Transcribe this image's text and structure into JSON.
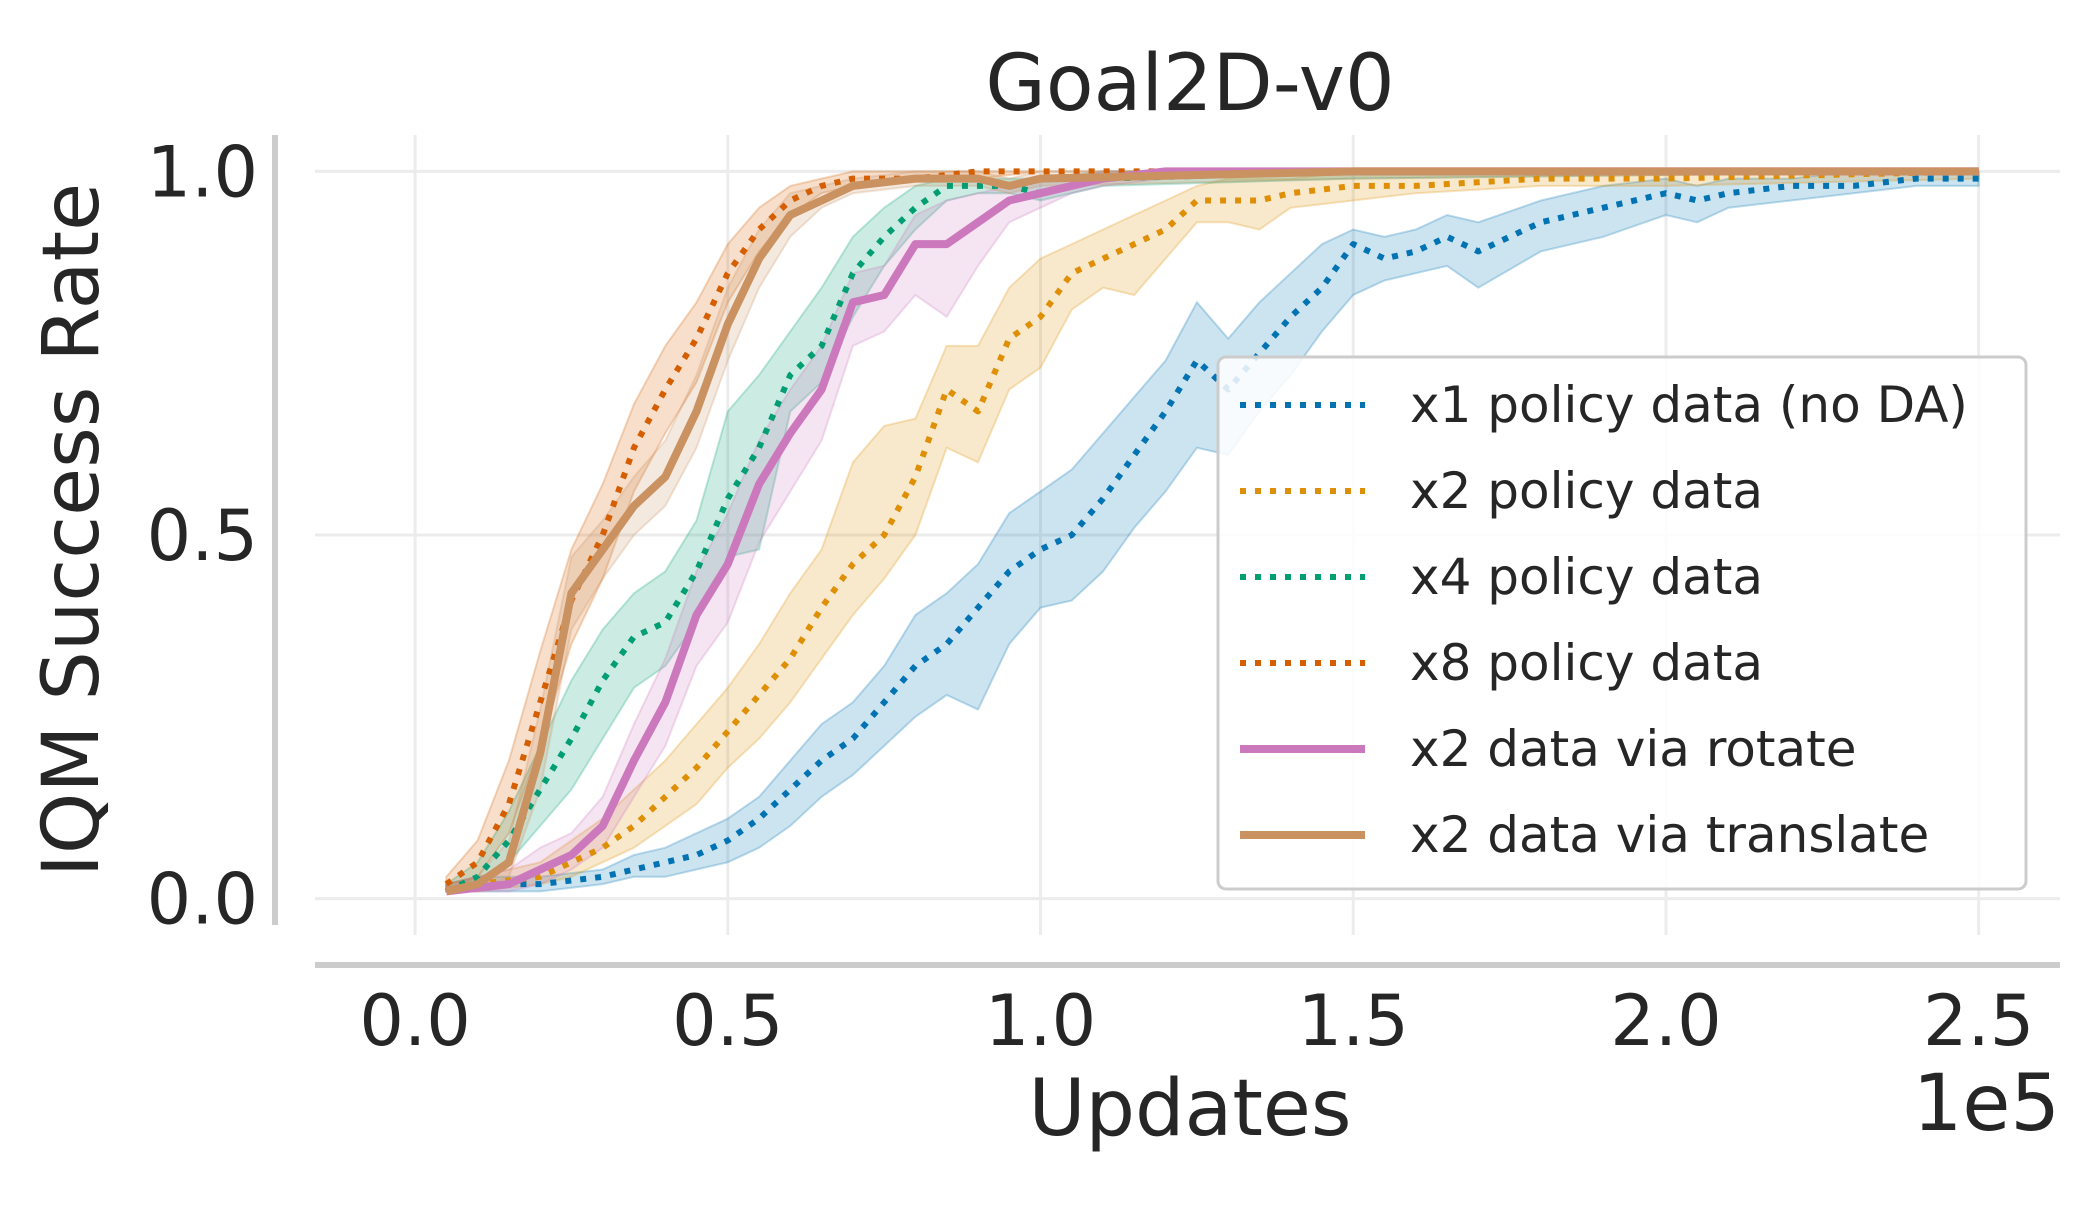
{
  "chart_data": {
    "type": "line",
    "title": "Goal2D-v0",
    "xlabel": "Updates",
    "ylabel": "IQM Success Rate",
    "x_scale_label": "1e5",
    "xlim": [
      -0.16,
      2.63
    ],
    "ylim": [
      -0.05,
      1.05
    ],
    "x_ticks": [
      0.0,
      0.5,
      1.0,
      1.5,
      2.0,
      2.5
    ],
    "x_tick_labels": [
      "0.0",
      "0.5",
      "1.0",
      "1.5",
      "2.0",
      "2.5"
    ],
    "y_ticks": [
      0.0,
      0.5,
      1.0
    ],
    "y_tick_labels": [
      "0.0",
      "0.5",
      "1.0"
    ],
    "grid": true,
    "legend_position": "center-right",
    "series": [
      {
        "name": "x1 policy data (no DA)",
        "style": "dotted",
        "color": "#0173b2",
        "x": [
          0.05,
          0.1,
          0.2,
          0.3,
          0.35,
          0.4,
          0.45,
          0.5,
          0.55,
          0.6,
          0.65,
          0.7,
          0.75,
          0.8,
          0.85,
          0.9,
          0.95,
          1.0,
          1.05,
          1.1,
          1.15,
          1.2,
          1.25,
          1.3,
          1.35,
          1.4,
          1.45,
          1.5,
          1.55,
          1.6,
          1.65,
          1.7,
          1.8,
          1.9,
          2.0,
          2.05,
          2.1,
          2.2,
          2.3,
          2.4,
          2.5
        ],
        "values": [
          0.01,
          0.02,
          0.02,
          0.03,
          0.04,
          0.05,
          0.06,
          0.08,
          0.11,
          0.15,
          0.19,
          0.22,
          0.27,
          0.32,
          0.35,
          0.4,
          0.45,
          0.48,
          0.5,
          0.55,
          0.61,
          0.67,
          0.74,
          0.7,
          0.75,
          0.8,
          0.84,
          0.9,
          0.88,
          0.89,
          0.91,
          0.89,
          0.93,
          0.95,
          0.97,
          0.96,
          0.97,
          0.98,
          0.98,
          0.99,
          0.99
        ],
        "lower": [
          0.01,
          0.01,
          0.01,
          0.02,
          0.03,
          0.03,
          0.04,
          0.05,
          0.07,
          0.1,
          0.14,
          0.17,
          0.21,
          0.25,
          0.28,
          0.26,
          0.35,
          0.4,
          0.41,
          0.45,
          0.51,
          0.56,
          0.62,
          0.61,
          0.67,
          0.72,
          0.78,
          0.83,
          0.85,
          0.86,
          0.87,
          0.84,
          0.89,
          0.91,
          0.94,
          0.93,
          0.95,
          0.96,
          0.97,
          0.98,
          0.98
        ],
        "upper": [
          0.02,
          0.03,
          0.03,
          0.04,
          0.06,
          0.07,
          0.09,
          0.11,
          0.14,
          0.19,
          0.24,
          0.27,
          0.32,
          0.39,
          0.42,
          0.46,
          0.53,
          0.56,
          0.59,
          0.64,
          0.69,
          0.74,
          0.82,
          0.77,
          0.82,
          0.86,
          0.9,
          0.92,
          0.91,
          0.92,
          0.94,
          0.93,
          0.96,
          0.98,
          0.99,
          0.98,
          0.99,
          0.99,
          1.0,
          1.0,
          1.0
        ]
      },
      {
        "name": "x2 policy data",
        "style": "dotted",
        "color": "#de8f05",
        "x": [
          0.05,
          0.1,
          0.2,
          0.25,
          0.3,
          0.35,
          0.4,
          0.45,
          0.5,
          0.55,
          0.6,
          0.65,
          0.7,
          0.75,
          0.8,
          0.85,
          0.9,
          0.95,
          1.0,
          1.05,
          1.1,
          1.15,
          1.2,
          1.25,
          1.3,
          1.35,
          1.4,
          1.5,
          1.6,
          1.8,
          2.0,
          2.5
        ],
        "values": [
          0.01,
          0.02,
          0.03,
          0.05,
          0.07,
          0.1,
          0.14,
          0.18,
          0.23,
          0.28,
          0.33,
          0.4,
          0.46,
          0.5,
          0.58,
          0.7,
          0.67,
          0.77,
          0.8,
          0.86,
          0.88,
          0.9,
          0.92,
          0.96,
          0.96,
          0.96,
          0.97,
          0.98,
          0.98,
          0.99,
          0.99,
          1.0
        ],
        "lower": [
          0.01,
          0.01,
          0.02,
          0.03,
          0.05,
          0.07,
          0.1,
          0.13,
          0.18,
          0.22,
          0.27,
          0.33,
          0.39,
          0.44,
          0.5,
          0.62,
          0.6,
          0.7,
          0.73,
          0.81,
          0.84,
          0.83,
          0.88,
          0.93,
          0.93,
          0.92,
          0.95,
          0.96,
          0.97,
          0.98,
          0.98,
          0.99
        ],
        "upper": [
          0.02,
          0.03,
          0.05,
          0.08,
          0.11,
          0.15,
          0.19,
          0.24,
          0.29,
          0.35,
          0.42,
          0.48,
          0.6,
          0.65,
          0.66,
          0.76,
          0.76,
          0.84,
          0.88,
          0.9,
          0.92,
          0.94,
          0.96,
          0.98,
          0.99,
          0.99,
          0.99,
          1.0,
          1.0,
          1.0,
          1.0,
          1.0
        ]
      },
      {
        "name": "x4 policy data",
        "style": "dotted",
        "color": "#029e73",
        "x": [
          0.05,
          0.1,
          0.15,
          0.2,
          0.25,
          0.3,
          0.35,
          0.4,
          0.45,
          0.5,
          0.55,
          0.6,
          0.65,
          0.7,
          0.75,
          0.8,
          0.85,
          0.9,
          0.95,
          1.0,
          1.1,
          1.5,
          2.5
        ],
        "values": [
          0.01,
          0.03,
          0.08,
          0.15,
          0.22,
          0.3,
          0.36,
          0.38,
          0.45,
          0.55,
          0.62,
          0.72,
          0.76,
          0.86,
          0.91,
          0.95,
          0.98,
          0.98,
          0.98,
          0.97,
          0.99,
          1.0,
          1.0
        ],
        "lower": [
          0.01,
          0.02,
          0.05,
          0.1,
          0.15,
          0.22,
          0.29,
          0.32,
          0.38,
          0.47,
          0.48,
          0.67,
          0.71,
          0.8,
          0.87,
          0.92,
          0.96,
          0.97,
          0.97,
          0.96,
          0.98,
          0.99,
          1.0
        ],
        "upper": [
          0.02,
          0.05,
          0.12,
          0.21,
          0.3,
          0.37,
          0.42,
          0.45,
          0.52,
          0.67,
          0.72,
          0.78,
          0.84,
          0.91,
          0.95,
          0.98,
          0.99,
          0.99,
          0.99,
          0.99,
          1.0,
          1.0,
          1.0
        ]
      },
      {
        "name": "x8 policy data",
        "style": "dotted",
        "color": "#d55e00",
        "x": [
          0.05,
          0.1,
          0.15,
          0.2,
          0.25,
          0.3,
          0.35,
          0.4,
          0.45,
          0.5,
          0.55,
          0.6,
          0.65,
          0.7,
          0.8,
          0.9,
          1.0,
          1.5,
          2.5
        ],
        "values": [
          0.02,
          0.05,
          0.13,
          0.27,
          0.41,
          0.5,
          0.62,
          0.7,
          0.77,
          0.86,
          0.92,
          0.96,
          0.98,
          0.99,
          0.99,
          1.0,
          1.0,
          1.0,
          1.0
        ],
        "lower": [
          0.01,
          0.03,
          0.09,
          0.21,
          0.35,
          0.44,
          0.56,
          0.64,
          0.71,
          0.82,
          0.89,
          0.94,
          0.97,
          0.98,
          0.99,
          0.99,
          1.0,
          1.0,
          1.0
        ],
        "upper": [
          0.03,
          0.08,
          0.19,
          0.34,
          0.48,
          0.57,
          0.68,
          0.76,
          0.82,
          0.9,
          0.95,
          0.98,
          0.99,
          1.0,
          1.0,
          1.0,
          1.0,
          1.0,
          1.0
        ]
      },
      {
        "name": "x2 data via rotate",
        "style": "solid",
        "color": "#cc78bc",
        "x": [
          0.05,
          0.15,
          0.2,
          0.25,
          0.3,
          0.35,
          0.4,
          0.45,
          0.5,
          0.55,
          0.6,
          0.65,
          0.7,
          0.75,
          0.8,
          0.85,
          0.9,
          0.95,
          1.0,
          1.05,
          1.1,
          1.2,
          1.5,
          2.0,
          2.5
        ],
        "values": [
          0.01,
          0.02,
          0.04,
          0.06,
          0.1,
          0.19,
          0.27,
          0.39,
          0.46,
          0.57,
          0.64,
          0.7,
          0.82,
          0.83,
          0.9,
          0.9,
          0.93,
          0.96,
          0.97,
          0.98,
          0.99,
          1.0,
          1.0,
          1.0,
          1.0
        ],
        "lower": [
          0.01,
          0.01,
          0.02,
          0.04,
          0.07,
          0.14,
          0.21,
          0.32,
          0.38,
          0.49,
          0.56,
          0.63,
          0.76,
          0.78,
          0.83,
          0.8,
          0.87,
          0.93,
          0.95,
          0.97,
          0.98,
          0.99,
          1.0,
          1.0,
          1.0
        ],
        "upper": [
          0.02,
          0.04,
          0.07,
          0.09,
          0.14,
          0.24,
          0.33,
          0.45,
          0.53,
          0.63,
          0.7,
          0.76,
          0.86,
          0.87,
          0.94,
          0.96,
          0.97,
          0.98,
          0.99,
          0.99,
          1.0,
          1.0,
          1.0,
          1.0,
          1.0
        ]
      },
      {
        "name": "x2 data via translate",
        "style": "solid",
        "color": "#ca9161",
        "x": [
          0.05,
          0.1,
          0.15,
          0.2,
          0.25,
          0.3,
          0.35,
          0.4,
          0.45,
          0.5,
          0.55,
          0.6,
          0.65,
          0.7,
          0.8,
          0.9,
          0.95,
          1.0,
          1.5,
          2.5
        ],
        "values": [
          0.01,
          0.02,
          0.05,
          0.2,
          0.42,
          0.48,
          0.54,
          0.58,
          0.67,
          0.79,
          0.88,
          0.94,
          0.96,
          0.98,
          0.99,
          0.99,
          0.98,
          0.99,
          1.0,
          1.0
        ],
        "lower": [
          0.01,
          0.01,
          0.03,
          0.15,
          0.37,
          0.44,
          0.5,
          0.54,
          0.62,
          0.74,
          0.84,
          0.91,
          0.95,
          0.97,
          0.98,
          0.98,
          0.97,
          0.98,
          0.99,
          1.0
        ],
        "upper": [
          0.02,
          0.03,
          0.08,
          0.26,
          0.47,
          0.52,
          0.58,
          0.63,
          0.72,
          0.84,
          0.92,
          0.97,
          0.98,
          0.99,
          1.0,
          1.0,
          0.99,
          1.0,
          1.0,
          1.0
        ]
      }
    ]
  }
}
